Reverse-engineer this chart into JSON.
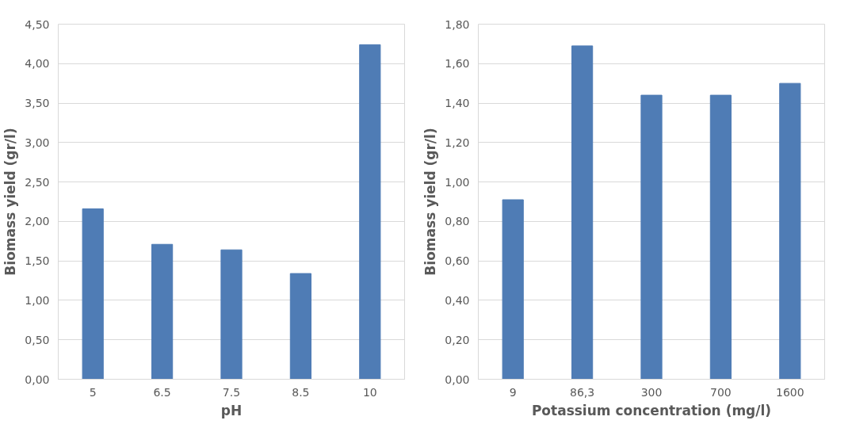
{
  "chart_data": [
    {
      "type": "bar",
      "xlabel": "pH",
      "ylabel": "Biomass yield (gr/l)",
      "categories": [
        "5",
        "6.5",
        "7.5",
        "8.5",
        "10"
      ],
      "values": [
        2.16,
        1.71,
        1.64,
        1.34,
        4.24
      ],
      "color": "#4f7cb5",
      "ylim": [
        0,
        4.5
      ],
      "yticks": [
        {
          "value": 0,
          "label": "0,00"
        },
        {
          "value": 0.5,
          "label": "0,50"
        },
        {
          "value": 1,
          "label": "1,00"
        },
        {
          "value": 1.5,
          "label": "1,50"
        },
        {
          "value": 2,
          "label": "2,00"
        },
        {
          "value": 2.5,
          "label": "2,50"
        },
        {
          "value": 3,
          "label": "3,00"
        },
        {
          "value": 3.5,
          "label": "3,50"
        },
        {
          "value": 4,
          "label": "4,00"
        },
        {
          "value": 4.5,
          "label": "4,50"
        }
      ],
      "grid": "y"
    },
    {
      "type": "bar",
      "xlabel": "Potassium concentration (mg/l)",
      "ylabel": "Biomass yield (gr/l)",
      "categories": [
        "9",
        "86,3",
        "300",
        "700",
        "1600"
      ],
      "values": [
        0.91,
        1.69,
        1.44,
        1.44,
        1.5
      ],
      "color": "#4f7cb5",
      "ylim": [
        0,
        1.8
      ],
      "yticks": [
        {
          "value": 0,
          "label": "0,00"
        },
        {
          "value": 0.2,
          "label": "0,20"
        },
        {
          "value": 0.4,
          "label": "0,40"
        },
        {
          "value": 0.6,
          "label": "0,60"
        },
        {
          "value": 0.8,
          "label": "0,80"
        },
        {
          "value": 1,
          "label": "1,00"
        },
        {
          "value": 1.2,
          "label": "1,20"
        },
        {
          "value": 1.4,
          "label": "1,40"
        },
        {
          "value": 1.6,
          "label": "1,60"
        },
        {
          "value": 1.8,
          "label": "1,80"
        }
      ],
      "grid": "y"
    }
  ]
}
